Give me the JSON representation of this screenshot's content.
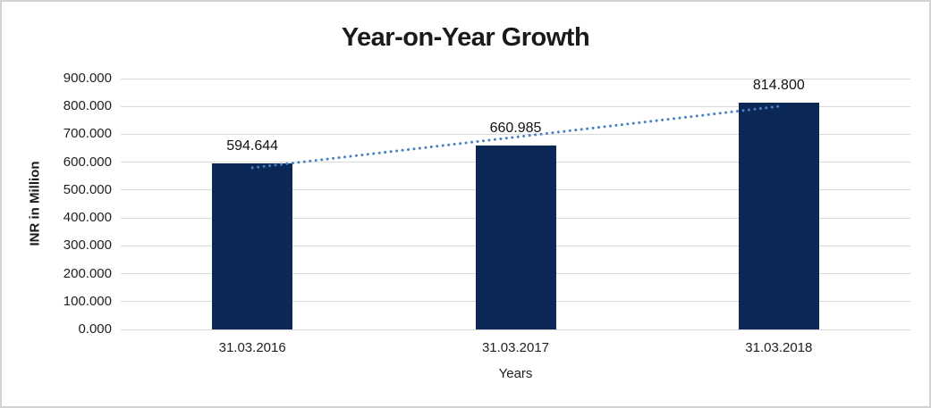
{
  "window": {
    "background": "#ffffff",
    "border_color": "#d2d2d2"
  },
  "chart_data": {
    "type": "bar",
    "title": "Year-on-Year Growth",
    "xlabel": "Years",
    "ylabel": "INR in Million",
    "categories": [
      "31.03.2016",
      "31.03.2017",
      "31.03.2018"
    ],
    "values": [
      594.644,
      660.985,
      814.8
    ],
    "data_labels": [
      "594.644",
      "660.985",
      "814.800"
    ],
    "ylim": [
      0,
      900
    ],
    "ytick_step": 100,
    "ytick_labels": [
      "0.000",
      "100.000",
      "200.000",
      "300.000",
      "400.000",
      "500.000",
      "600.000",
      "700.000",
      "800.000",
      "900.000"
    ],
    "grid": true,
    "legend": "none",
    "bar_color": "#0c2857",
    "text_color": "#1f1f1f",
    "gridline_color": "#d9d9d9",
    "trendline": {
      "type": "linear",
      "style": "dotted",
      "color": "#4a80c4"
    }
  }
}
